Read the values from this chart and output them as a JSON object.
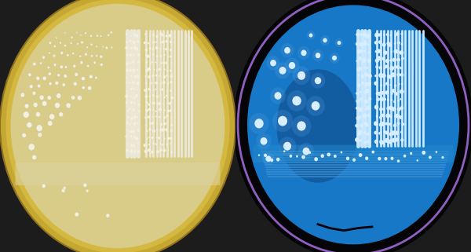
{
  "fig_width": 6.0,
  "fig_height": 3.21,
  "dpi": 100,
  "background_color": "#1c1c1c",
  "left_panel": {
    "media_color": "#d8cc88",
    "rim_outer_color": "#c4a832",
    "rim_inner_color": "#d4b840",
    "colony_color": "#f4f0e0",
    "colony_edge_color": "#c8c0a0",
    "streak_color": "#ece8d8"
  },
  "right_panel": {
    "media_color": "#1878c8",
    "dark_center_color": "#0e4a8a",
    "rim_outer_color": "#0a0a14",
    "rim_ring_color": "#1050a0",
    "colony_color": "#d8eeff",
    "streak_color": "#c8e8ff"
  }
}
